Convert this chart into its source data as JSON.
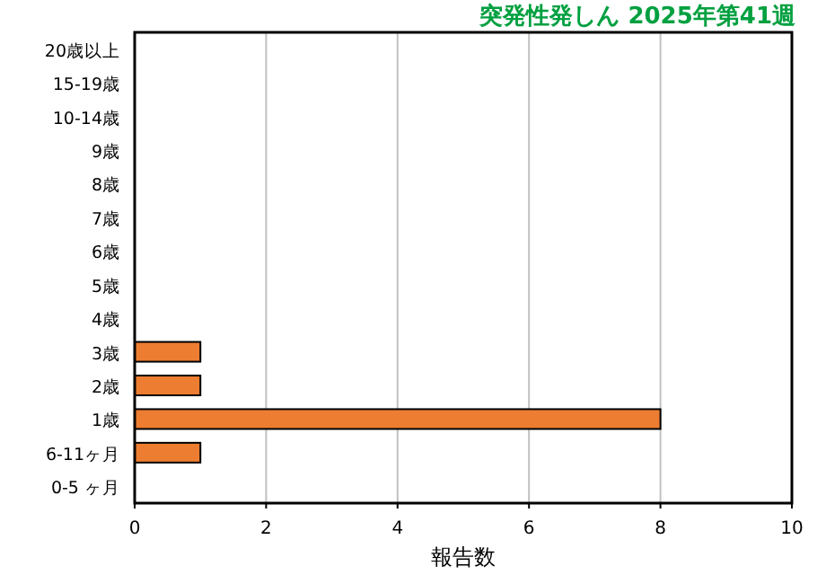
{
  "chart_data": {
    "type": "bar",
    "orientation": "horizontal",
    "title": "突発性発しん 2025年第41週",
    "xlabel": "報告数",
    "categories": [
      "20歳以上",
      "15-19歳",
      "10-14歳",
      "9歳",
      "8歳",
      "7歳",
      "6歳",
      "5歳",
      "4歳",
      "3歳",
      "2歳",
      "1歳",
      "6-11ヶ月",
      "0-5 ヶ月"
    ],
    "values": [
      0,
      0,
      0,
      0,
      0,
      0,
      0,
      0,
      0,
      1,
      1,
      8,
      1,
      0
    ],
    "color": "#ed7d31",
    "xlim": [
      0,
      10
    ],
    "xticks": [
      0,
      2,
      4,
      6,
      8,
      10
    ],
    "grid": "x"
  }
}
